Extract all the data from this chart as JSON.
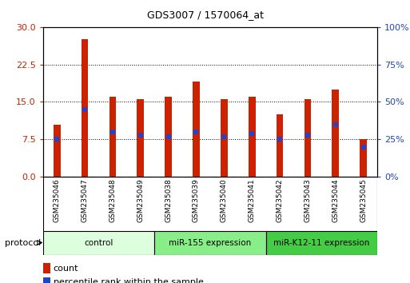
{
  "title": "GDS3007 / 1570064_at",
  "samples": [
    "GSM235046",
    "GSM235047",
    "GSM235048",
    "GSM235049",
    "GSM235038",
    "GSM235039",
    "GSM235040",
    "GSM235041",
    "GSM235042",
    "GSM235043",
    "GSM235044",
    "GSM235045"
  ],
  "counts": [
    10.5,
    27.5,
    16.0,
    15.5,
    16.0,
    19.0,
    15.5,
    16.0,
    12.5,
    15.5,
    17.5,
    7.5
  ],
  "percentile_ranks": [
    25,
    45,
    30,
    28,
    27,
    30,
    27,
    29,
    25,
    28,
    35,
    20
  ],
  "ylim_left": [
    0,
    30
  ],
  "ylim_right": [
    0,
    100
  ],
  "yticks_left": [
    0,
    7.5,
    15,
    22.5,
    30
  ],
  "yticks_right": [
    0,
    25,
    50,
    75,
    100
  ],
  "bar_color": "#cc2200",
  "dot_color": "#2244cc",
  "bg_color": "#ffffff",
  "protocol_groups": [
    {
      "label": "control",
      "start": 0,
      "end": 4,
      "color": "#ddffdd"
    },
    {
      "label": "miR-155 expression",
      "start": 4,
      "end": 8,
      "color": "#88ee88"
    },
    {
      "label": "miR-K12-11 expression",
      "start": 8,
      "end": 12,
      "color": "#44cc44"
    }
  ],
  "legend_count_label": "count",
  "legend_percentile_label": "percentile rank within the sample",
  "protocol_label": "protocol",
  "bar_width": 0.25,
  "dot_size": 4
}
